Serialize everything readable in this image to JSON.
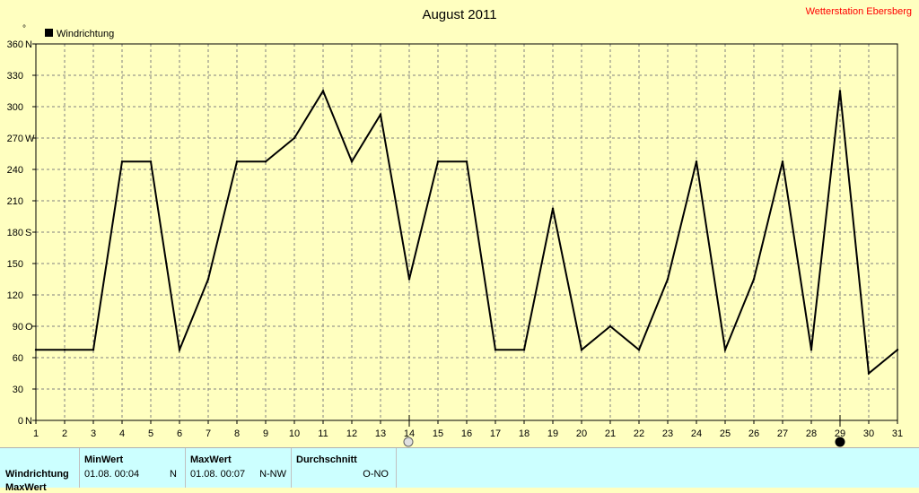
{
  "header": {
    "title": "August 2011",
    "station": "Wetterstation Ebersberg"
  },
  "colors": {
    "background": "#ffffc0",
    "grid": "#808080",
    "line": "#000000",
    "station_text": "#ff0000",
    "summary_bg": "#ccffff"
  },
  "chart_data": {
    "type": "line",
    "title": "August 2011",
    "legend": {
      "position": "top-left",
      "entries": [
        "Windrichtung"
      ]
    },
    "y_unit_label": "°",
    "ylim": [
      0,
      360
    ],
    "y_ticks": [
      {
        "value": 0,
        "label": "0",
        "dir": "N"
      },
      {
        "value": 30,
        "label": "30",
        "dir": ""
      },
      {
        "value": 60,
        "label": "60",
        "dir": ""
      },
      {
        "value": 90,
        "label": "90",
        "dir": "O"
      },
      {
        "value": 120,
        "label": "120",
        "dir": ""
      },
      {
        "value": 150,
        "label": "150",
        "dir": ""
      },
      {
        "value": 180,
        "label": "180",
        "dir": "S"
      },
      {
        "value": 210,
        "label": "210",
        "dir": ""
      },
      {
        "value": 240,
        "label": "240",
        "dir": ""
      },
      {
        "value": 270,
        "label": "270",
        "dir": "W"
      },
      {
        "value": 300,
        "label": "300",
        "dir": ""
      },
      {
        "value": 330,
        "label": "330",
        "dir": ""
      },
      {
        "value": 360,
        "label": "360",
        "dir": "N"
      }
    ],
    "x": [
      1,
      2,
      3,
      4,
      5,
      6,
      7,
      8,
      9,
      10,
      11,
      12,
      13,
      14,
      15,
      16,
      17,
      18,
      19,
      20,
      21,
      22,
      23,
      24,
      25,
      26,
      27,
      28,
      29,
      30,
      31
    ],
    "xlim": [
      1,
      31
    ],
    "grid": true,
    "series": [
      {
        "name": "Windrichtung",
        "values": [
          67.5,
          67.5,
          67.5,
          247.5,
          247.5,
          67.5,
          135,
          247.5,
          247.5,
          270,
          315,
          247.5,
          292.5,
          135,
          247.5,
          247.5,
          67.5,
          67.5,
          202.5,
          67.5,
          90,
          67.5,
          135,
          247.5,
          67.5,
          135,
          247.5,
          67.5,
          315,
          45,
          67.5
        ]
      }
    ],
    "moon_phases": [
      {
        "day": 14,
        "phase": "full-moon"
      },
      {
        "day": 29,
        "phase": "new-moon"
      }
    ]
  },
  "summary": {
    "row_label": "Windrichtung",
    "row_label_2": "MaxWert",
    "min": {
      "header": "MinWert",
      "datetime": "01.08.  00:04",
      "value": "N"
    },
    "max": {
      "header": "MaxWert",
      "datetime": "01.08.  00:07",
      "value": "N-NW"
    },
    "avg": {
      "header": "Durchschnitt",
      "value": "O-NO"
    }
  }
}
